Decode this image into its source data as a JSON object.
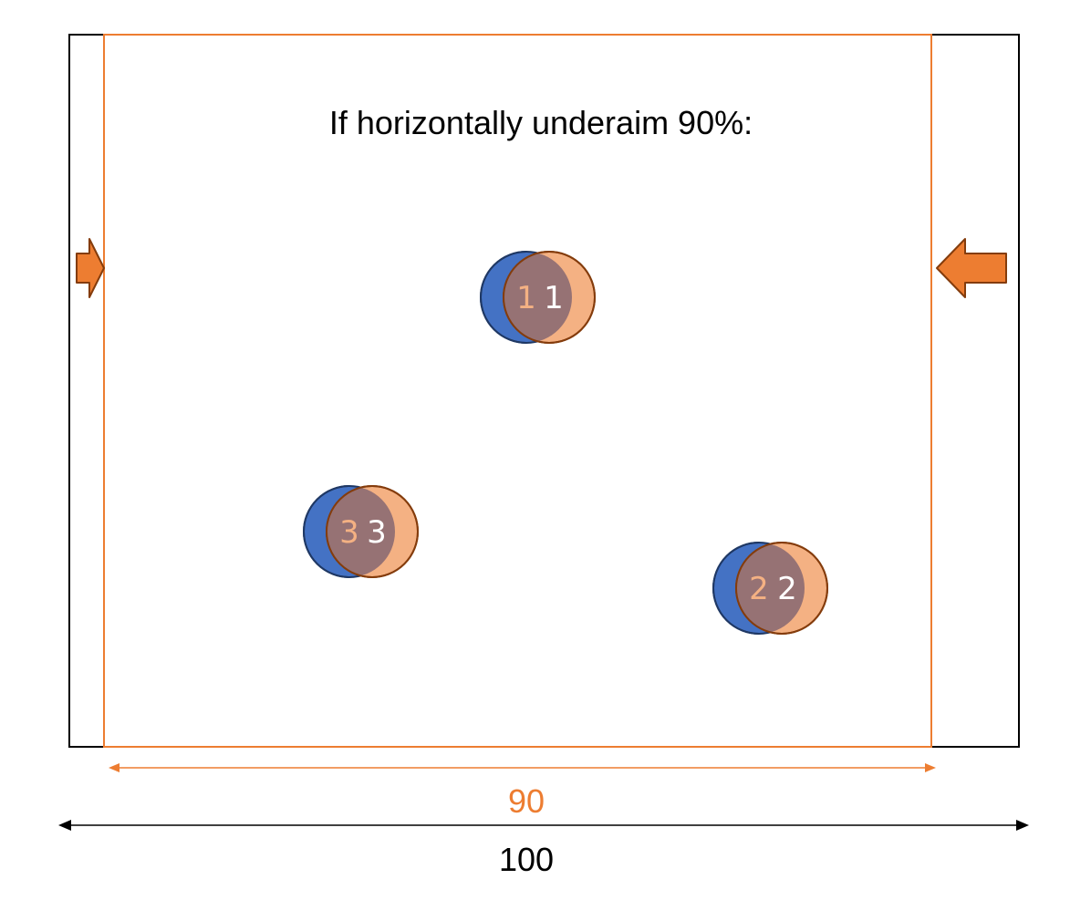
{
  "diagram": {
    "title": "If horizontally underaim 90%:",
    "inner_width_label": "90",
    "outer_width_label": "100",
    "targets": [
      {
        "original_label": "1",
        "shifted_label": "1"
      },
      {
        "original_label": "2",
        "shifted_label": "2"
      },
      {
        "original_label": "3",
        "shifted_label": "3"
      }
    ],
    "colors": {
      "accent_orange": "#ed7d31",
      "original_circle_blue": "#4472c4",
      "shifted_circle_peach": "#f4b183",
      "overlap": "#967274",
      "outline_dark": "#843c0c",
      "frame_black": "#000000"
    },
    "icons": {
      "left_arrow": "arrow-right-icon",
      "right_arrow": "arrow-left-icon"
    }
  }
}
